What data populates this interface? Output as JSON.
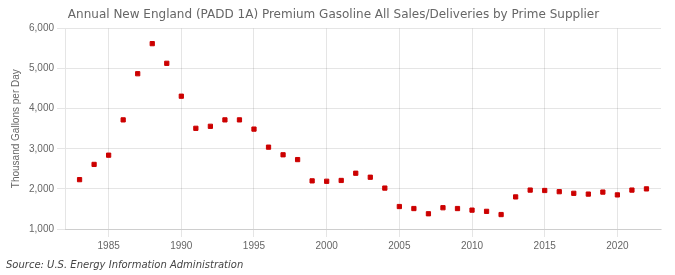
{
  "chart_data": {
    "type": "scatter",
    "title": "Annual New England (PADD 1A) Premium Gasoline All Sales/Deliveries by Prime Supplier",
    "ylabel": "Thousand Gallons per Day",
    "annotations": [
      "Source: U.S. Energy Information Administration"
    ],
    "x": [
      1983,
      1984,
      1985,
      1986,
      1987,
      1988,
      1989,
      1990,
      1991,
      1992,
      1993,
      1994,
      1995,
      1996,
      1997,
      1998,
      1999,
      2000,
      2001,
      2002,
      2003,
      2004,
      2005,
      2006,
      2007,
      2008,
      2009,
      2010,
      2011,
      2012,
      2013,
      2014,
      2015,
      2016,
      2017,
      2018,
      2019,
      2020,
      2021,
      2022
    ],
    "values": [
      2230,
      2610,
      2840,
      3720,
      4870,
      5620,
      5130,
      4310,
      3510,
      3560,
      3720,
      3720,
      3490,
      3040,
      2850,
      2730,
      2200,
      2190,
      2210,
      2390,
      2290,
      2020,
      1560,
      1510,
      1380,
      1530,
      1510,
      1470,
      1440,
      1360,
      1800,
      1970,
      1960,
      1930,
      1890,
      1870,
      1920,
      1850,
      1970,
      2000
    ],
    "color": "#cc0000",
    "marker": "square",
    "xlim": [
      1982,
      2023
    ],
    "xticks": [
      1985,
      1990,
      1995,
      2000,
      2005,
      2010,
      2015,
      2020
    ],
    "ylim": [
      1000,
      6000
    ],
    "yticks": [
      {
        "value": 1000,
        "label": "1,000"
      },
      {
        "value": 2000,
        "label": "2,000"
      },
      {
        "value": 3000,
        "label": "3,000"
      },
      {
        "value": 4000,
        "label": "4,000"
      },
      {
        "value": 5000,
        "label": "5,000"
      },
      {
        "value": 6000,
        "label": "6,000"
      }
    ],
    "grid": true
  }
}
